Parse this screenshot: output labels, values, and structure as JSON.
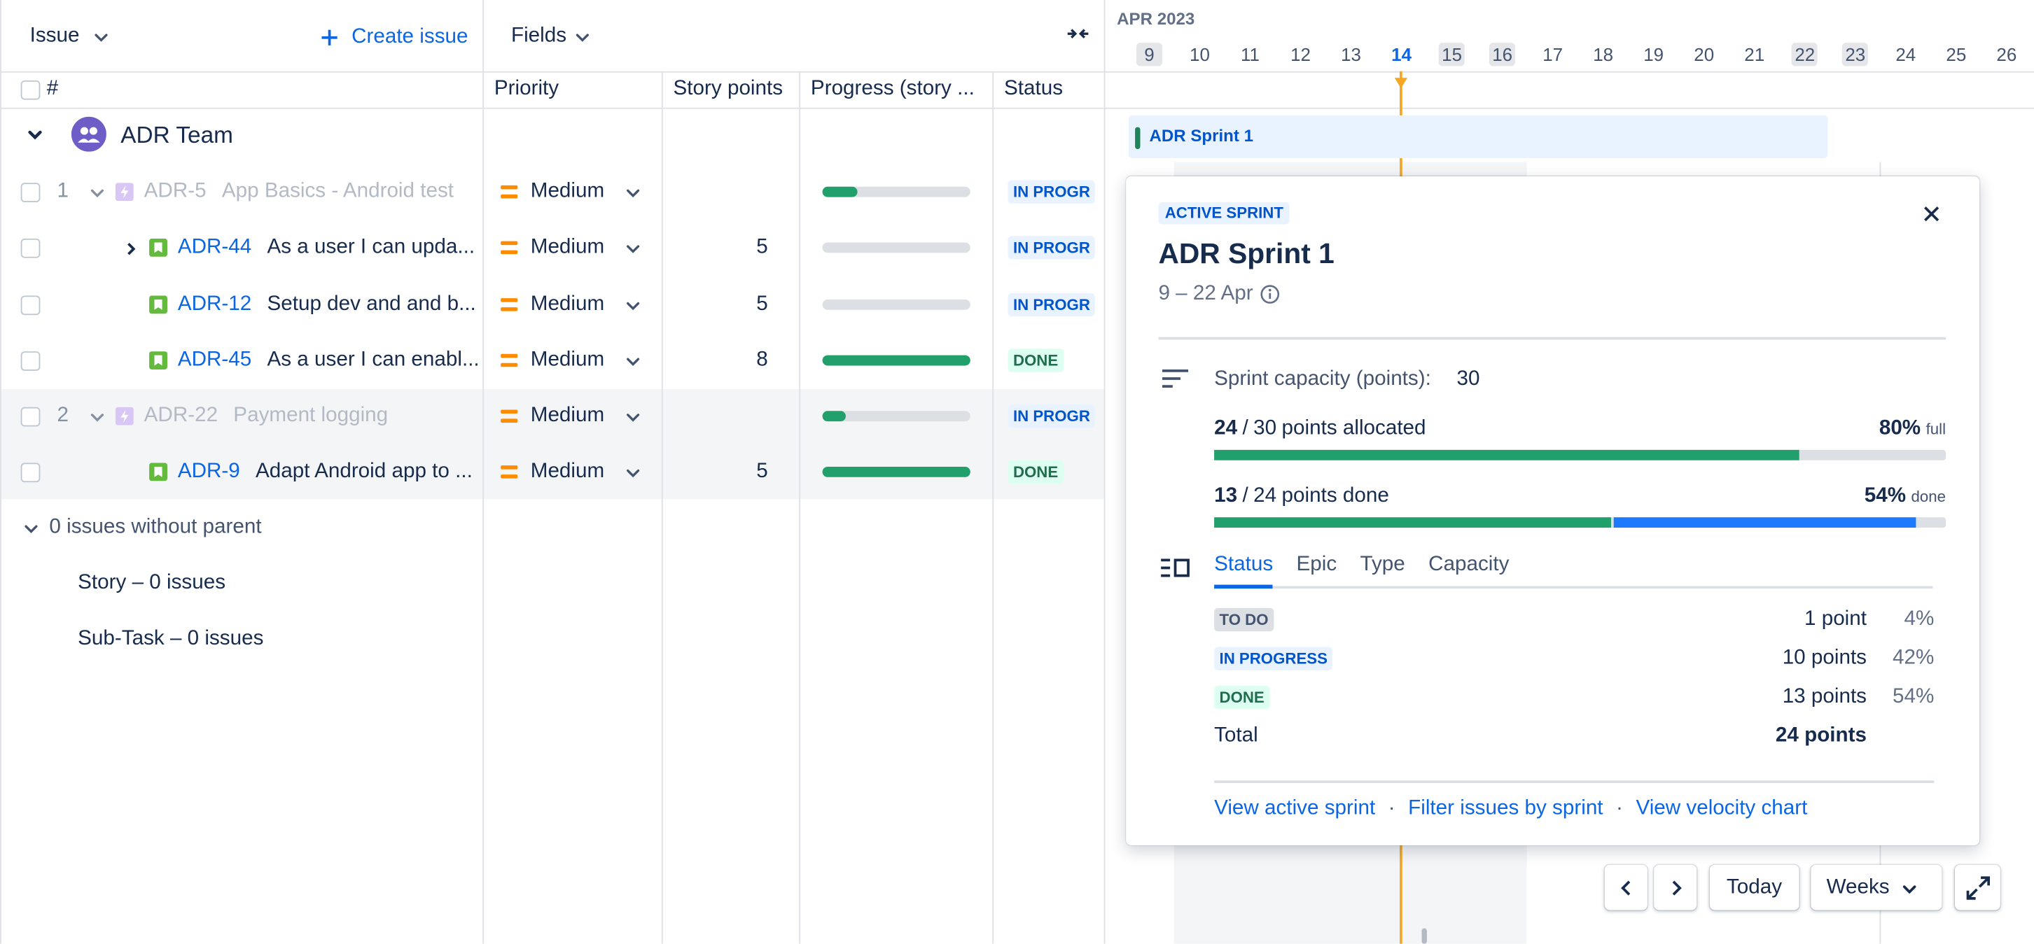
{
  "header": {
    "issue": "Issue",
    "create_issue": "Create issue",
    "fields": "Fields"
  },
  "columns": {
    "number": "#",
    "priority": "Priority",
    "story_points": "Story points",
    "progress": "Progress (story ...",
    "status": "Status"
  },
  "team": "ADR Team",
  "rows": [
    {
      "number": "1",
      "key": "ADR-5",
      "summary": "App Basics - Android test",
      "priority": "Medium",
      "story_points": null,
      "progress": 0.24,
      "status": "IN PROGR"
    },
    {
      "number": null,
      "key": "ADR-44",
      "summary": "As a user I can upda...",
      "priority": "Medium",
      "story_points": 5,
      "progress": 0,
      "status": "IN PROGR"
    },
    {
      "number": null,
      "key": "ADR-12",
      "summary": "Setup dev and and b...",
      "priority": "Medium",
      "story_points": 5,
      "progress": 0,
      "status": "IN PROGR"
    },
    {
      "number": null,
      "key": "ADR-45",
      "summary": "As a user I can enabl...",
      "priority": "Medium",
      "story_points": 8,
      "progress": 1,
      "status": "DONE"
    },
    {
      "number": "2",
      "key": "ADR-22",
      "summary": "Payment logging",
      "priority": "Medium",
      "story_points": null,
      "progress": 0.16,
      "status": "IN PROGR"
    },
    {
      "number": null,
      "key": "ADR-9",
      "summary": "Adapt Android app to ...",
      "priority": "Medium",
      "story_points": 5,
      "progress": 1,
      "status": "DONE"
    }
  ],
  "no_parent": {
    "title": "0 issues without parent",
    "items": [
      "Story – 0 issues",
      "Sub-Task – 0 issues"
    ]
  },
  "timeline": {
    "month": "APR 2023",
    "days": [
      {
        "label": 9,
        "weekend": true
      },
      {
        "label": 10
      },
      {
        "label": 11
      },
      {
        "label": 12
      },
      {
        "label": 13
      },
      {
        "label": 14,
        "today": true
      },
      {
        "label": 15,
        "weekend": true
      },
      {
        "label": 16,
        "weekend": true
      },
      {
        "label": 17
      },
      {
        "label": 18
      },
      {
        "label": 19
      },
      {
        "label": 20
      },
      {
        "label": 21
      },
      {
        "label": 22,
        "weekend": true
      },
      {
        "label": 23,
        "weekend": true
      },
      {
        "label": 24
      },
      {
        "label": 25
      },
      {
        "label": 26
      }
    ],
    "sprint": "ADR Sprint 1"
  },
  "sprint_popup": {
    "badge": "ACTIVE SPRINT",
    "title": "ADR Sprint 1",
    "dates": "9 – 22 Apr",
    "capacity": {
      "label": "Sprint capacity (points):",
      "value": 30
    },
    "allocated": {
      "value": 24,
      "sep": "/",
      "total": 30,
      "text": "points allocated",
      "percent": "80%",
      "note": "full"
    },
    "done": {
      "value": 13,
      "in_progress": 10,
      "sep": "/",
      "total": 24,
      "text": "points done",
      "percent": "54%",
      "note": "done"
    },
    "tabs": [
      "Status",
      "Epic",
      "Type",
      "Capacity"
    ],
    "breakdown": [
      {
        "status": "TO DO",
        "points": "1 point",
        "percent": "4%"
      },
      {
        "status": "IN PROGRESS",
        "points": "10 points",
        "percent": "42%"
      },
      {
        "status": "DONE",
        "points": "13 points",
        "percent": "54%"
      }
    ],
    "total": {
      "label": "Total",
      "points": "24 points"
    },
    "links": [
      "View active sprint",
      "Filter issues by sprint",
      "View velocity chart"
    ],
    "link_sep": "·"
  },
  "controls": {
    "today": "Today",
    "weeks": "Weeks"
  }
}
